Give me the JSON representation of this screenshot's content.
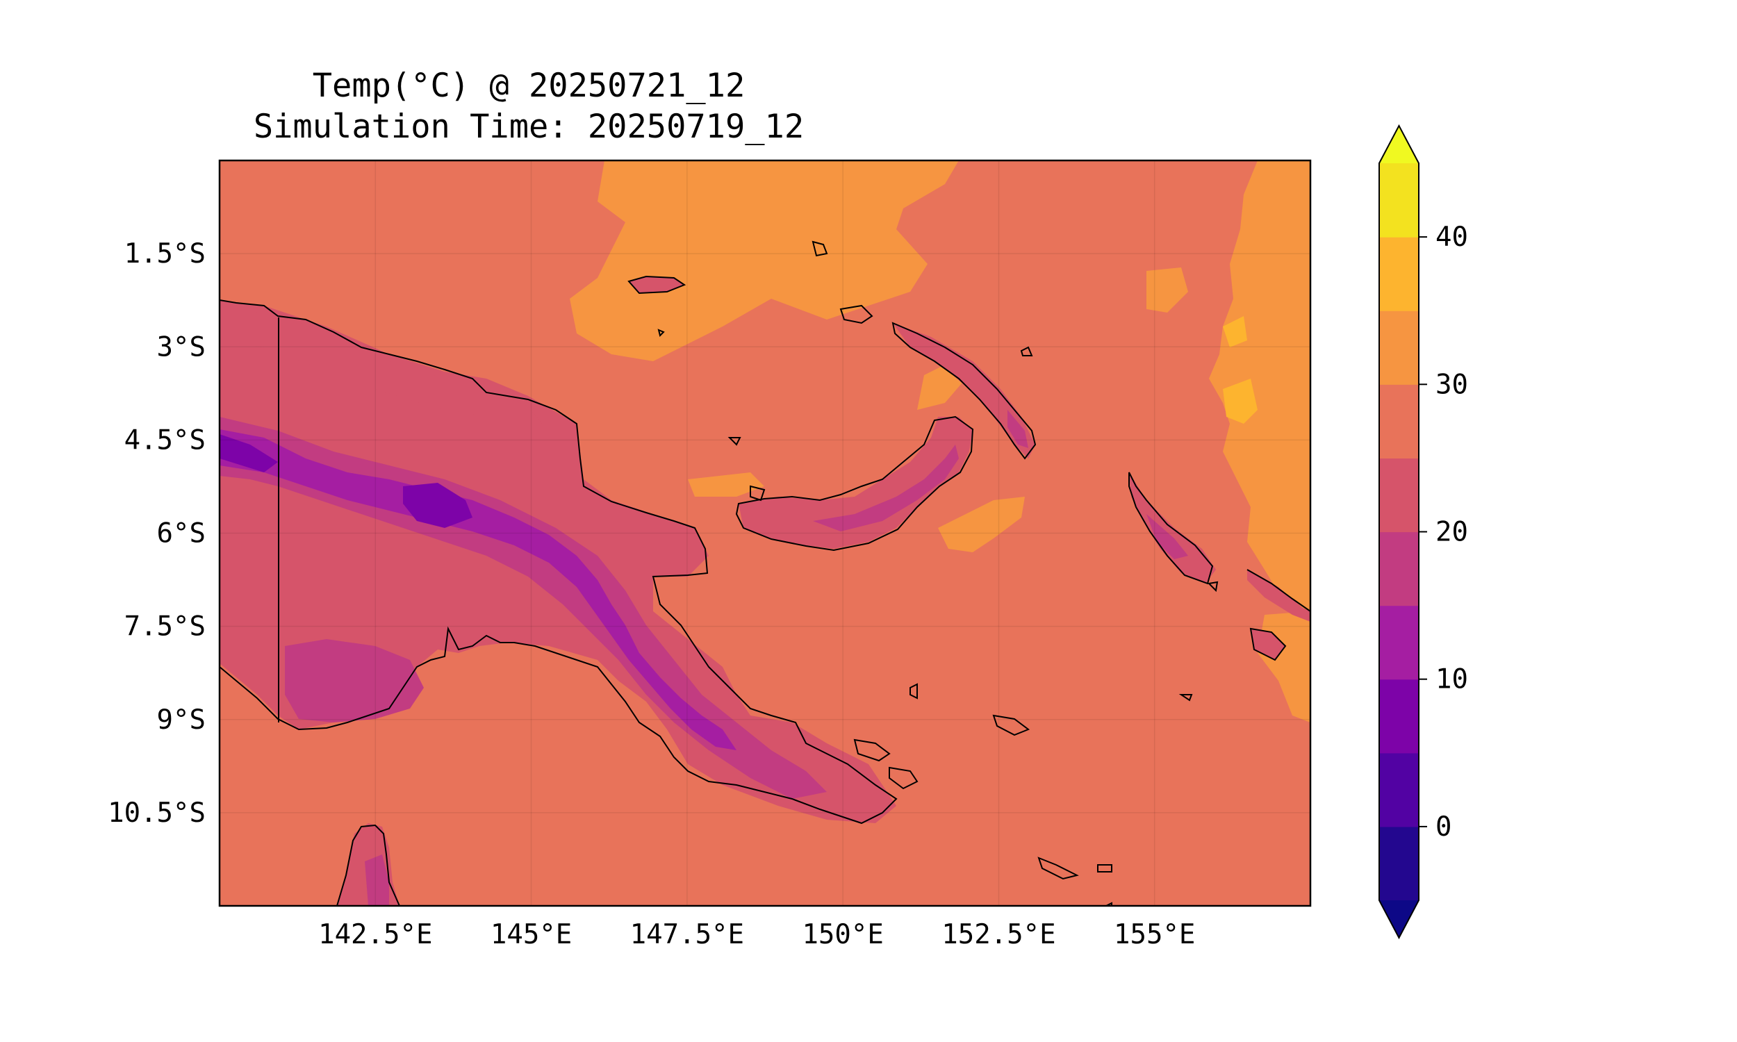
{
  "title": {
    "line1": "Temp(°C) @ 20250721_12",
    "line2": "Simulation Time: 20250719_12"
  },
  "map": {
    "extent": {
      "lon_min": 140.0,
      "lon_max": 157.5,
      "lat_min": -12.0,
      "lat_max": 0.0
    },
    "lon_ticks": [
      "142.5°E",
      "145°E",
      "147.5°E",
      "150°E",
      "152.5°E",
      "155°E"
    ],
    "lon_tick_values": [
      142.5,
      145,
      147.5,
      150,
      152.5,
      155
    ],
    "lat_ticks": [
      "1.5°S",
      "3°S",
      "4.5°S",
      "6°S",
      "7.5°S",
      "9°S",
      "10.5°S"
    ],
    "lat_tick_values": [
      -1.5,
      -3,
      -4.5,
      -6,
      -7.5,
      -9,
      -10.5
    ],
    "gridlines": true,
    "background_level_color": "#e8735a"
  },
  "colorbar": {
    "label": "",
    "tick_labels": [
      "0",
      "10",
      "20",
      "30",
      "40"
    ],
    "tick_values": [
      0,
      10,
      20,
      30,
      40
    ],
    "range": [
      -5,
      45
    ],
    "extend": "both",
    "levels": [
      {
        "from": -5,
        "to": 0,
        "color": "#23078f"
      },
      {
        "from": 0,
        "to": 5,
        "color": "#5202a3"
      },
      {
        "from": 5,
        "to": 10,
        "color": "#7d03a8"
      },
      {
        "from": 10,
        "to": 15,
        "color": "#a51ea2"
      },
      {
        "from": 15,
        "to": 20,
        "color": "#c23c81"
      },
      {
        "from": 20,
        "to": 25,
        "color": "#d6546a"
      },
      {
        "from": 25,
        "to": 30,
        "color": "#e8735a"
      },
      {
        "from": 30,
        "to": 35,
        "color": "#f69541"
      },
      {
        "from": 35,
        "to": 40,
        "color": "#fdb42f"
      },
      {
        "from": 40,
        "to": 45,
        "color": "#f3e21f"
      }
    ],
    "under_color": "#0d0887",
    "over_color": "#f0f921"
  }
}
